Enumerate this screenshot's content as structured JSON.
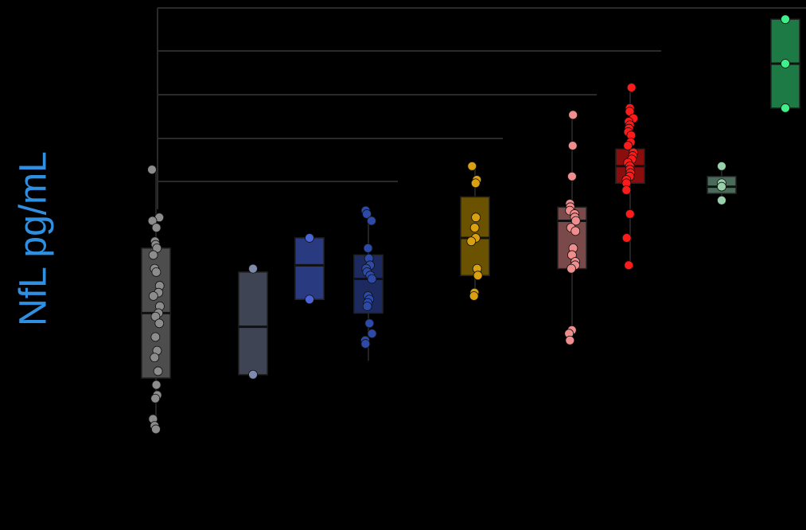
{
  "chart_data": {
    "type": "box",
    "ylabel": "NfL pg/mL",
    "colors": {
      "background": "#000000",
      "ylabel": "#2f8fe0",
      "bracket": "#2a2a2a",
      "whisker": "#222222",
      "median": "#111111",
      "box_edge": "#222222"
    },
    "ylim": [
      -2,
      107
    ],
    "groups": [
      {
        "box_color": "#4d4d4d",
        "point_color": "#8c8c8c",
        "stats": {
          "q1": 15,
          "median": 34,
          "q3": 53,
          "whisker_low": 0,
          "whisker_high": 76
        },
        "points": [
          76,
          62,
          61,
          59,
          55,
          54,
          53,
          51,
          47,
          46,
          42,
          40,
          39,
          36,
          34,
          33,
          31,
          27,
          23,
          21,
          17,
          13,
          10,
          9,
          3,
          1,
          0
        ]
      },
      {
        "box_color": "#3f4454",
        "point_color": "#7f8aad",
        "stats": {
          "q1": 16,
          "median": 30,
          "q3": 46,
          "whisker_low": 16,
          "whisker_high": 47
        },
        "points": [
          47,
          16
        ]
      },
      {
        "box_color": "#2a3a80",
        "point_color": "#4a64d6",
        "stats": {
          "q1": 38,
          "median": 48,
          "q3": 56,
          "whisker_low": 38,
          "whisker_high": 56
        },
        "points": [
          56,
          38
        ]
      },
      {
        "box_color": "#1c2a60",
        "point_color": "#2d4aa8",
        "stats": {
          "q1": 34,
          "median": 44,
          "q3": 51,
          "whisker_low": 20,
          "whisker_high": 64
        },
        "points": [
          64,
          63,
          61,
          53,
          50,
          48,
          47,
          46,
          45,
          44,
          39,
          38,
          37,
          36,
          31,
          28,
          26,
          25
        ]
      },
      {
        "box_color": "#6b5200",
        "point_color": "#d9a010",
        "stats": {
          "q1": 45,
          "median": 56,
          "q3": 68,
          "whisker_low": 39,
          "whisker_high": 77
        },
        "points": [
          77,
          73,
          72,
          62,
          59,
          56,
          55,
          47,
          45,
          40,
          39
        ]
      },
      {
        "box_color": "#7a4a4a",
        "point_color": "#f08e8e",
        "stats": {
          "q1": 47,
          "median": 61,
          "q3": 65,
          "whisker_low": 27,
          "whisker_high": 92
        },
        "points": [
          92,
          83,
          74,
          66,
          65,
          64,
          63,
          62,
          61,
          59,
          58,
          53,
          51,
          49,
          48,
          47,
          29,
          28,
          26
        ]
      },
      {
        "box_color": "#8b0e0e",
        "point_color": "#ff1a1a",
        "stats": {
          "q1": 72,
          "median": 77,
          "q3": 82,
          "whisker_low": 48,
          "whisker_high": 100
        },
        "points": [
          100,
          94,
          93,
          91,
          90,
          89,
          88,
          87,
          86,
          84,
          83,
          81,
          80,
          79,
          78,
          77,
          76,
          75,
          74,
          73,
          72,
          70,
          63,
          56,
          48
        ]
      },
      {
        "box_color": "#4a6b5a",
        "point_color": "#99cfaa",
        "stats": {
          "q1": 69,
          "median": 71,
          "q3": 74,
          "whisker_low": 67,
          "whisker_high": 77
        },
        "points": [
          77,
          72,
          71,
          67
        ]
      },
      {
        "box_color": "#1e7a45",
        "point_color": "#3ff08a",
        "stats": {
          "q1": 94,
          "median": 107,
          "q3": 120,
          "whisker_low": 94,
          "whisker_high": 120
        },
        "points": [
          120,
          107,
          94
        ]
      }
    ],
    "significance_brackets": [
      {
        "from_group": 0,
        "to_group": 9,
        "level": 5
      },
      {
        "from_group": 0,
        "to_group": 6,
        "level": 4
      },
      {
        "from_group": 0,
        "to_group": 5,
        "level": 3
      },
      {
        "from_group": 0,
        "to_group": 4,
        "level": 2
      },
      {
        "from_group": 0,
        "to_group": 3,
        "level": 1
      }
    ]
  }
}
